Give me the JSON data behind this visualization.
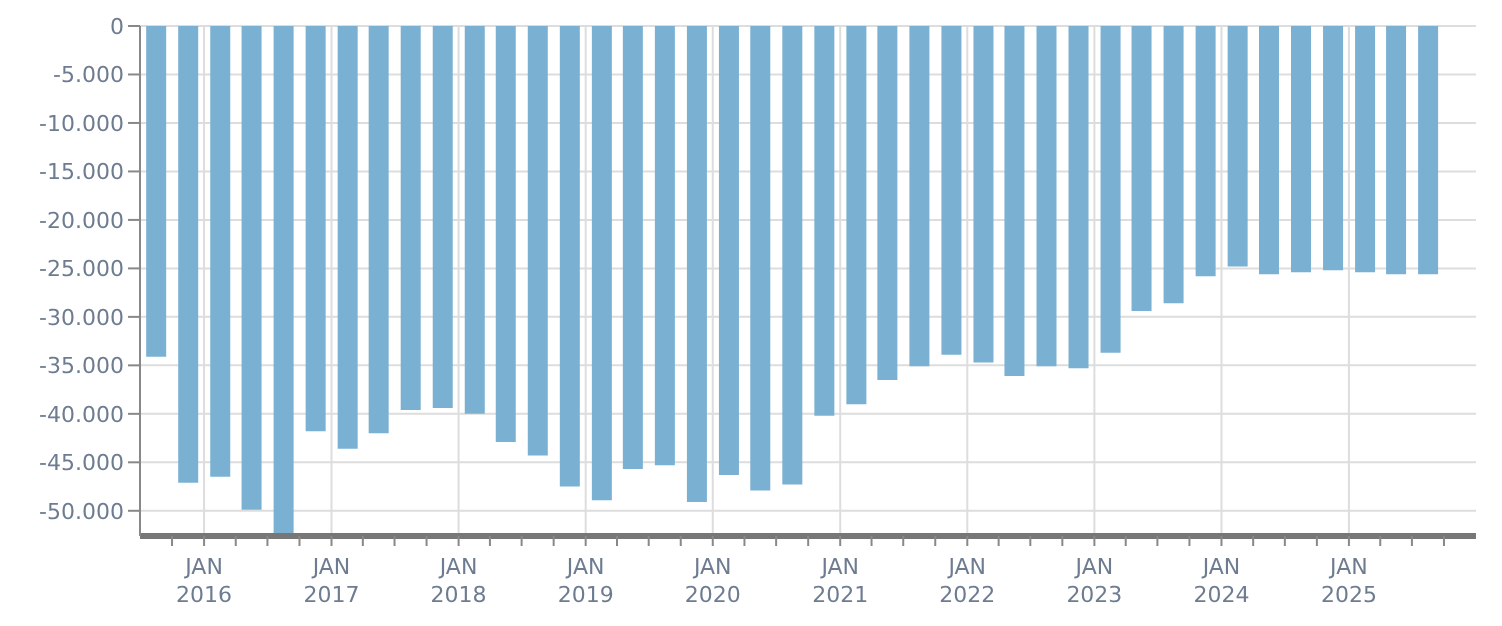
{
  "chart_data": {
    "type": "bar",
    "x": [
      "2015-08-15",
      "2015-11-15",
      "2016-02-15",
      "2016-05-15",
      "2016-08-15",
      "2016-11-15",
      "2017-02-15",
      "2017-05-15",
      "2017-08-15",
      "2017-11-15",
      "2018-02-15",
      "2018-05-15",
      "2018-08-15",
      "2018-11-15",
      "2019-02-15",
      "2019-05-15",
      "2019-08-15",
      "2019-11-15",
      "2020-02-15",
      "2020-05-15",
      "2020-08-15",
      "2020-11-15",
      "2021-02-15",
      "2021-05-15",
      "2021-08-15",
      "2021-11-15",
      "2022-02-15",
      "2022-05-15",
      "2022-08-15",
      "2022-11-15",
      "2023-02-15",
      "2023-05-15",
      "2023-08-15",
      "2023-11-15",
      "2024-02-15",
      "2024-05-15",
      "2024-08-15",
      "2024-11-15",
      "2025-02-15",
      "2025-05-15",
      "2025-08-15"
    ],
    "values": [
      -34100,
      -47100,
      -46500,
      -49900,
      -52500,
      -41800,
      -43600,
      -42000,
      -39600,
      -39400,
      -40000,
      -42900,
      -44300,
      -47500,
      -48900,
      -45700,
      -45300,
      -49100,
      -46300,
      -47900,
      -47300,
      -40200,
      -39000,
      -36500,
      -35100,
      -33900,
      -34700,
      -36100,
      -35100,
      -35300,
      -33700,
      -29400,
      -28600,
      -25800,
      -24800,
      -25600,
      -25400,
      -25200,
      -25400,
      -25600,
      -25600
    ],
    "color": "#7ab0d2",
    "xlim": [
      "2015-07-01",
      "2026-01-01"
    ],
    "xticks": [
      {
        "value": "2015-10-01",
        "label": null
      },
      {
        "value": "2016-01-01",
        "label": "JAN\n2016"
      },
      {
        "value": "2016-04-01",
        "label": null
      },
      {
        "value": "2016-07-01",
        "label": null
      },
      {
        "value": "2016-10-01",
        "label": null
      },
      {
        "value": "2017-01-01",
        "label": "JAN\n2017"
      },
      {
        "value": "2017-04-01",
        "label": null
      },
      {
        "value": "2017-07-01",
        "label": null
      },
      {
        "value": "2017-10-01",
        "label": null
      },
      {
        "value": "2018-01-01",
        "label": "JAN\n2018"
      },
      {
        "value": "2018-04-01",
        "label": null
      },
      {
        "value": "2018-07-01",
        "label": null
      },
      {
        "value": "2018-10-01",
        "label": null
      },
      {
        "value": "2019-01-01",
        "label": "JAN\n2019"
      },
      {
        "value": "2019-04-01",
        "label": null
      },
      {
        "value": "2019-07-01",
        "label": null
      },
      {
        "value": "2019-10-01",
        "label": null
      },
      {
        "value": "2020-01-01",
        "label": "JAN\n2020"
      },
      {
        "value": "2020-04-01",
        "label": null
      },
      {
        "value": "2020-07-01",
        "label": null
      },
      {
        "value": "2020-10-01",
        "label": null
      },
      {
        "value": "2021-01-01",
        "label": "JAN\n2021"
      },
      {
        "value": "2021-04-01",
        "label": null
      },
      {
        "value": "2021-07-01",
        "label": null
      },
      {
        "value": "2021-10-01",
        "label": null
      },
      {
        "value": "2022-01-01",
        "label": "JAN\n2022"
      },
      {
        "value": "2022-04-01",
        "label": null
      },
      {
        "value": "2022-07-01",
        "label": null
      },
      {
        "value": "2022-10-01",
        "label": null
      },
      {
        "value": "2023-01-01",
        "label": "JAN\n2023"
      },
      {
        "value": "2023-04-01",
        "label": null
      },
      {
        "value": "2023-07-01",
        "label": null
      },
      {
        "value": "2023-10-01",
        "label": null
      },
      {
        "value": "2024-01-01",
        "label": "JAN\n2024"
      },
      {
        "value": "2024-04-01",
        "label": null
      },
      {
        "value": "2024-07-01",
        "label": null
      },
      {
        "value": "2024-10-01",
        "label": null
      },
      {
        "value": "2025-01-01",
        "label": "JAN\n2025"
      },
      {
        "value": "2025-04-01",
        "label": null
      },
      {
        "value": "2025-07-01",
        "label": null
      },
      {
        "value": "2025-10-01",
        "label": null
      }
    ],
    "ylim": [
      -52600,
      0
    ],
    "yticks": [
      {
        "value": 0,
        "label": "0"
      },
      {
        "value": -5000,
        "label": "-5.000"
      },
      {
        "value": -10000,
        "label": "-10.000"
      },
      {
        "value": -15000,
        "label": "-15.000"
      },
      {
        "value": -20000,
        "label": "-20.000"
      },
      {
        "value": -25000,
        "label": "-25.000"
      },
      {
        "value": -30000,
        "label": "-30.000"
      },
      {
        "value": -35000,
        "label": "-35.000"
      },
      {
        "value": -40000,
        "label": "-40.000"
      },
      {
        "value": -45000,
        "label": "-45.000"
      },
      {
        "value": -50000,
        "label": "-50.000"
      }
    ],
    "grid": true
  }
}
